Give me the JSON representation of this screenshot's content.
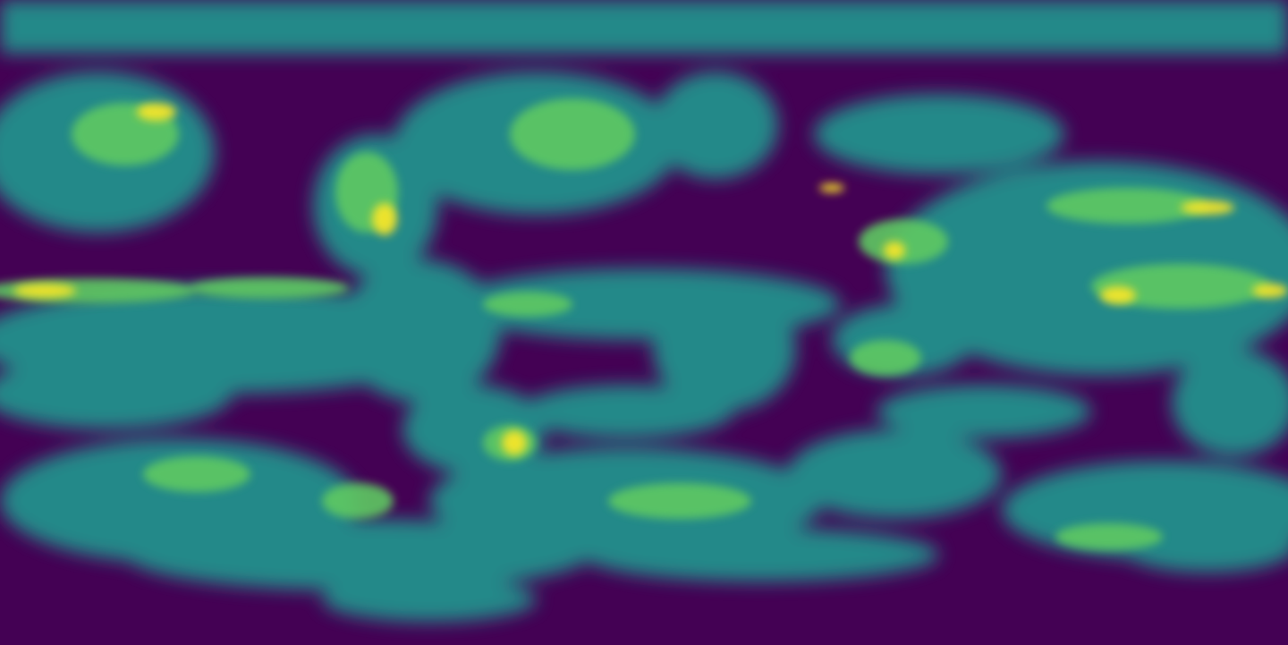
{
  "map": {
    "projection": "equirectangular",
    "colormap": "viridis",
    "colors": {
      "background": "#440154",
      "low": "#3b528b",
      "mid": "#21918c",
      "high": "#5ec962",
      "peak": "#fde725"
    }
  }
}
